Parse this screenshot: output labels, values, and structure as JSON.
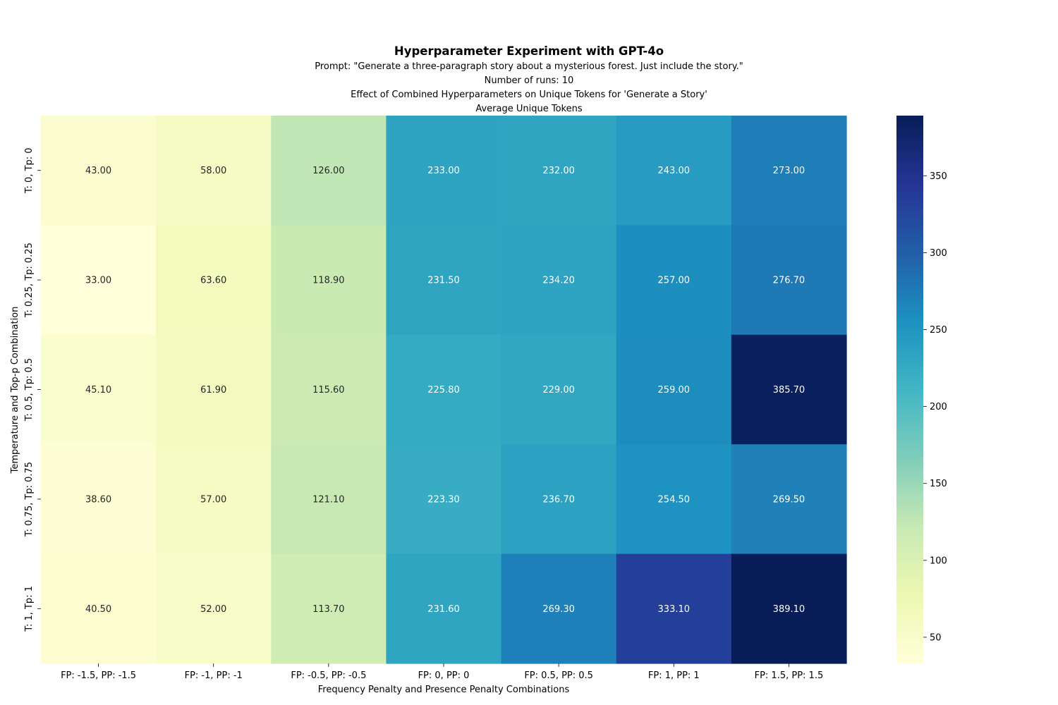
{
  "header": {
    "title": "Hyperparameter Experiment with GPT-4o",
    "prompt_line": "Prompt: \"Generate a three-paragraph story about a mysterious forest. Just include the story.\"",
    "runs_line": "Number of runs: 10",
    "effect_line": "Effect of Combined Hyperparameters on Unique Tokens for 'Generate a Story'",
    "metric_line": "Average Unique Tokens"
  },
  "chart_data": {
    "type": "heatmap",
    "title": "Hyperparameter Experiment with GPT-4o",
    "xlabel": "Frequency Penalty and Presence Penalty Combinations",
    "ylabel": "Temperature and Top-p Combination",
    "x_categories": [
      "FP: -1.5, PP: -1.5",
      "FP: -1, PP: -1",
      "FP: -0.5, PP: -0.5",
      "FP: 0, PP: 0",
      "FP: 0.5, PP: 0.5",
      "FP: 1, PP: 1",
      "FP: 1.5, PP: 1.5"
    ],
    "y_categories": [
      "T: 0, Tp: 0",
      "T: 0.25, Tp: 0.25",
      "T: 0.5, Tp: 0.5",
      "T: 0.75, Tp: 0.75",
      "T: 1, Tp: 1"
    ],
    "values": [
      [
        43.0,
        58.0,
        126.0,
        233.0,
        232.0,
        243.0,
        273.0
      ],
      [
        33.0,
        63.6,
        118.9,
        231.5,
        234.2,
        257.0,
        276.7
      ],
      [
        45.1,
        61.9,
        115.6,
        225.8,
        229.0,
        259.0,
        385.7
      ],
      [
        38.6,
        57.0,
        121.1,
        223.3,
        236.7,
        254.5,
        269.5
      ],
      [
        40.5,
        52.0,
        113.7,
        231.6,
        269.3,
        333.1,
        389.1
      ]
    ],
    "value_format": "2 decimals",
    "colormap": "YlGnBu",
    "color_range": [
      33.0,
      389.1
    ],
    "colorbar_ticks": [
      "50",
      "100",
      "150",
      "200",
      "250",
      "300",
      "350"
    ],
    "colorbar_tick_values": [
      50,
      100,
      150,
      200,
      250,
      300,
      350
    ],
    "annotation_colors": {
      "light_bg": "#262626",
      "dark_bg": "#ffffff"
    }
  }
}
